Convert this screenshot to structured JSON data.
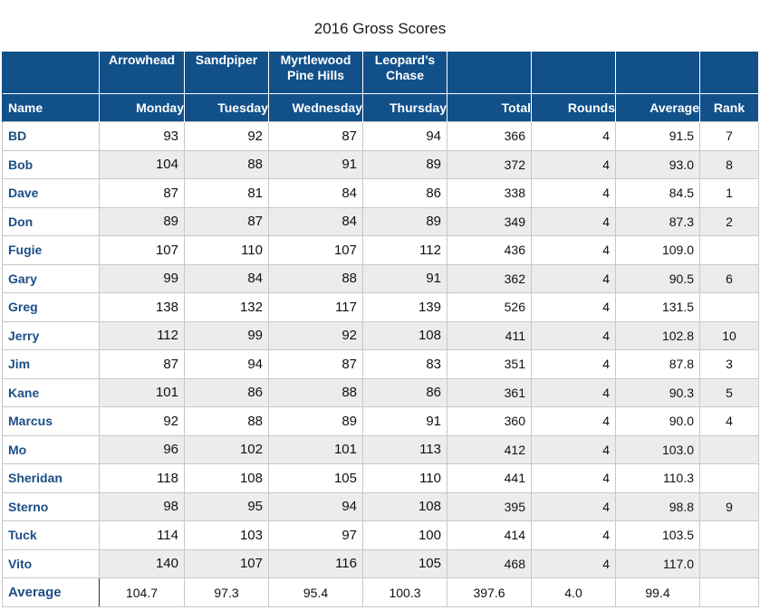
{
  "title": "2016 Gross Scores",
  "columns": {
    "course_headers": [
      "Arrowhead",
      "Sandpiper",
      "Myrtlewood Pine Hills",
      "Leopard’s Chase"
    ],
    "course_headers_lines": [
      [
        "Arrowhead"
      ],
      [
        "Sandpiper"
      ],
      [
        "Myrtlewood",
        "Pine Hills"
      ],
      [
        "Leopard’s",
        "Chase"
      ]
    ],
    "name": "Name",
    "days": [
      "Monday",
      "Tuesday",
      "Wednesday",
      "Thursday"
    ],
    "total": "Total",
    "rounds": "Rounds",
    "average": "Average",
    "rank": "Rank"
  },
  "rows": [
    {
      "name": "BD",
      "scores": [
        "93",
        "92",
        "87",
        "94"
      ],
      "total": "366",
      "rounds": "4",
      "average": "91.5",
      "rank": "7"
    },
    {
      "name": "Bob",
      "scores": [
        "104",
        "88",
        "91",
        "89"
      ],
      "total": "372",
      "rounds": "4",
      "average": "93.0",
      "rank": "8"
    },
    {
      "name": "Dave",
      "scores": [
        "87",
        "81",
        "84",
        "86"
      ],
      "total": "338",
      "rounds": "4",
      "average": "84.5",
      "rank": "1"
    },
    {
      "name": "Don",
      "scores": [
        "89",
        "87",
        "84",
        "89"
      ],
      "total": "349",
      "rounds": "4",
      "average": "87.3",
      "rank": "2"
    },
    {
      "name": "Fugie",
      "scores": [
        "107",
        "110",
        "107",
        "112"
      ],
      "total": "436",
      "rounds": "4",
      "average": "109.0",
      "rank": ""
    },
    {
      "name": "Gary",
      "scores": [
        "99",
        "84",
        "88",
        "91"
      ],
      "total": "362",
      "rounds": "4",
      "average": "90.5",
      "rank": "6"
    },
    {
      "name": "Greg",
      "scores": [
        "138",
        "132",
        "117",
        "139"
      ],
      "total": "526",
      "rounds": "4",
      "average": "131.5",
      "rank": ""
    },
    {
      "name": "Jerry",
      "scores": [
        "112",
        "99",
        "92",
        "108"
      ],
      "total": "411",
      "rounds": "4",
      "average": "102.8",
      "rank": "10"
    },
    {
      "name": "Jim",
      "scores": [
        "87",
        "94",
        "87",
        "83"
      ],
      "total": "351",
      "rounds": "4",
      "average": "87.8",
      "rank": "3"
    },
    {
      "name": "Kane",
      "scores": [
        "101",
        "86",
        "88",
        "86"
      ],
      "total": "361",
      "rounds": "4",
      "average": "90.3",
      "rank": "5"
    },
    {
      "name": "Marcus",
      "scores": [
        "92",
        "88",
        "89",
        "91"
      ],
      "total": "360",
      "rounds": "4",
      "average": "90.0",
      "rank": "4"
    },
    {
      "name": "Mo",
      "scores": [
        "96",
        "102",
        "101",
        "113"
      ],
      "total": "412",
      "rounds": "4",
      "average": "103.0",
      "rank": ""
    },
    {
      "name": "Sheridan",
      "scores": [
        "118",
        "108",
        "105",
        "110"
      ],
      "total": "441",
      "rounds": "4",
      "average": "110.3",
      "rank": ""
    },
    {
      "name": "Sterno",
      "scores": [
        "98",
        "95",
        "94",
        "108"
      ],
      "total": "395",
      "rounds": "4",
      "average": "98.8",
      "rank": "9"
    },
    {
      "name": "Tuck",
      "scores": [
        "114",
        "103",
        "97",
        "100"
      ],
      "total": "414",
      "rounds": "4",
      "average": "103.5",
      "rank": ""
    },
    {
      "name": "Vito",
      "scores": [
        "140",
        "107",
        "116",
        "105"
      ],
      "total": "468",
      "rounds": "4",
      "average": "117.0",
      "rank": ""
    }
  ],
  "footer": {
    "label": "Average",
    "scores": [
      "104.7",
      "97.3",
      "95.4",
      "100.3"
    ],
    "total": "397.6",
    "rounds": "4.0",
    "average": "99.4",
    "rank": ""
  },
  "colors": {
    "header_bg": "#12508a",
    "name_text": "#1d4f86",
    "alt_row": "#ececec"
  }
}
